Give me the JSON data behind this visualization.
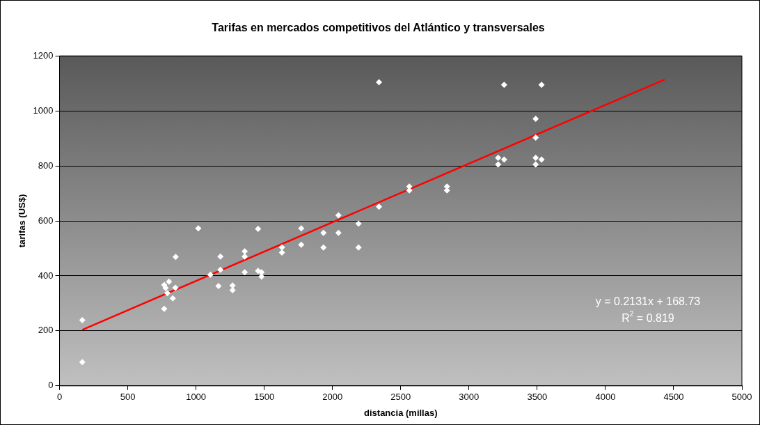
{
  "chart_data": {
    "type": "scatter",
    "title": "Tarifas en mercados competitivos del Atlántico y transversales",
    "xlabel": "distancia (millas)",
    "ylabel": "tarifas (US$)",
    "xlim": [
      0,
      5000
    ],
    "xticks": [
      0,
      500,
      1000,
      1500,
      2000,
      2500,
      3000,
      3500,
      4000,
      4500,
      5000
    ],
    "ylim": [
      0,
      1200
    ],
    "yticks": [
      0,
      200,
      400,
      600,
      800,
      1000,
      1200
    ],
    "grid": "y",
    "legend": false,
    "marker": "diamond",
    "series": [
      {
        "color": "#ffffff",
        "x": [
          167,
          167,
          767,
          777,
          790,
          802,
          849,
          830,
          767,
          851,
          1017,
          1106,
          1165,
          1179,
          1179,
          1268,
          1268,
          1357,
          1357,
          1357,
          1455,
          1455,
          1480,
          1480,
          1630,
          1630,
          1771,
          1771,
          1934,
          1934,
          2044,
          2044,
          2191,
          2191,
          2341,
          2341,
          2563,
          2563,
          2839,
          2839,
          3214,
          3214,
          3258,
          3258,
          3489,
          3489,
          3489,
          3489,
          3532,
          3532
        ],
        "values": [
          239,
          86,
          367,
          356,
          337,
          379,
          357,
          318,
          280,
          469,
          573,
          404,
          363,
          470,
          422,
          365,
          348,
          489,
          470,
          413,
          571,
          418,
          413,
          397,
          504,
          485,
          573,
          513,
          556,
          503,
          620,
          556,
          590,
          503,
          651,
          1104,
          725,
          711,
          725,
          711,
          829,
          805,
          823,
          1095,
          971,
          903,
          829,
          805,
          823,
          1095
        ]
      },
      {
        "type": "line",
        "color": "#ff0000",
        "marker": "none",
        "x": [
          167,
          4434
        ],
        "values": [
          204,
          1114
        ]
      }
    ],
    "annotations": [
      "y = 0.2131x + 168.73",
      "R$^{2}$ = 0.819"
    ]
  }
}
